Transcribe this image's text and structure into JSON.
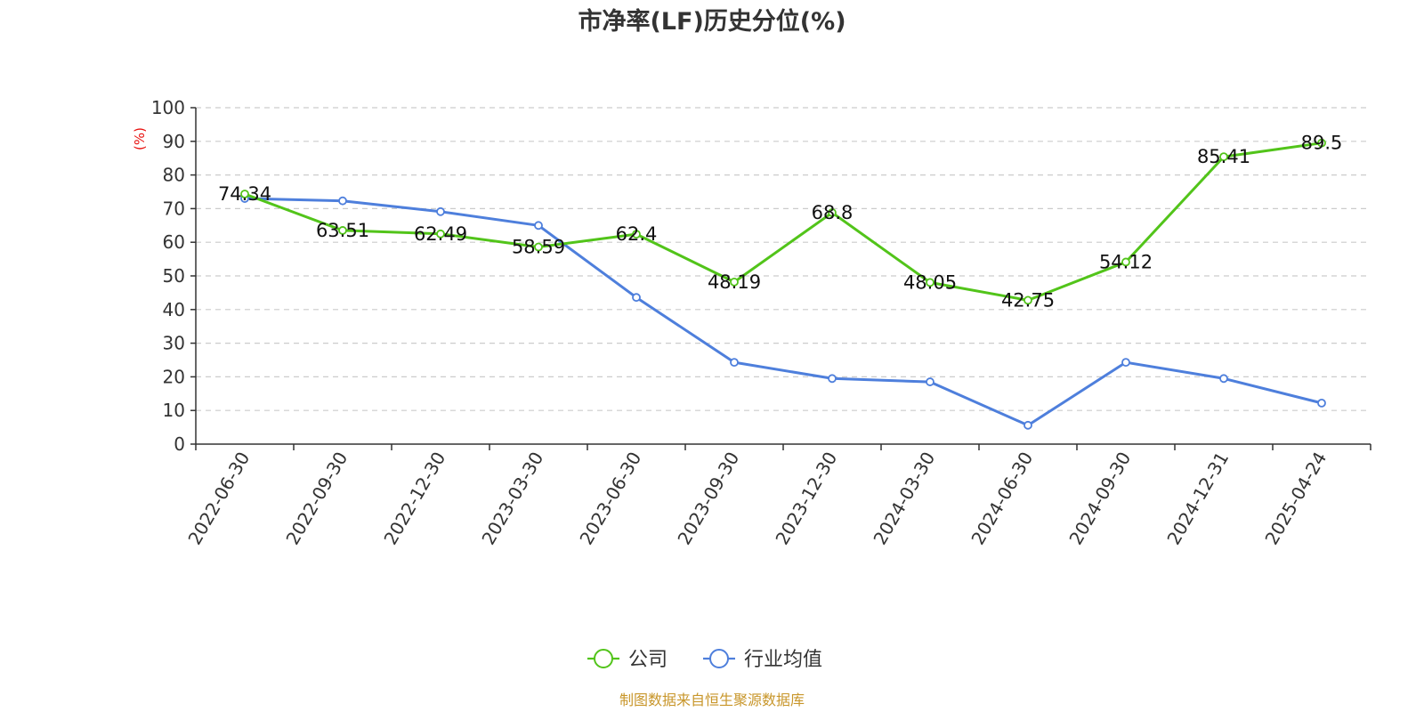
{
  "chart_data": {
    "type": "line",
    "title": "市净率(LF)历史分位(%)",
    "ylabel": "(%)",
    "ylim": [
      0,
      100
    ],
    "yticks": [
      "0",
      "10",
      "20",
      "30",
      "40",
      "50",
      "60",
      "70",
      "80",
      "90",
      "100"
    ],
    "categories": [
      "2022-06-30",
      "2022-09-30",
      "2022-12-30",
      "2023-03-30",
      "2023-06-30",
      "2023-09-30",
      "2023-12-30",
      "2024-03-30",
      "2024-06-30",
      "2024-09-30",
      "2024-12-31",
      "2025-04-24"
    ],
    "series": [
      {
        "name": "公司",
        "color": "#52c41a",
        "values": [
          74.34,
          63.51,
          62.49,
          58.59,
          62.4,
          48.19,
          68.8,
          48.05,
          42.75,
          54.12,
          85.41,
          89.5
        ],
        "labels": [
          "74.34",
          "63.51",
          "62.49",
          "58.59",
          "62.4",
          "48.19",
          "68.8",
          "48.05",
          "42.75",
          "54.12",
          "85.41",
          "89.5"
        ]
      },
      {
        "name": "行业均值",
        "color": "#4e7fdc",
        "values": [
          73.0,
          72.3,
          69.1,
          65.0,
          43.6,
          24.3,
          19.5,
          18.5,
          5.6,
          24.3,
          19.5,
          12.2
        ]
      }
    ],
    "grid": "horizontal-dashed",
    "legend_position": "bottom-center"
  },
  "colors": {
    "ylabel": "#e8110f",
    "source": "#c8962a",
    "axis": "#333333",
    "grid": "#cccccc"
  },
  "source": "制图数据来自恒生聚源数据库"
}
